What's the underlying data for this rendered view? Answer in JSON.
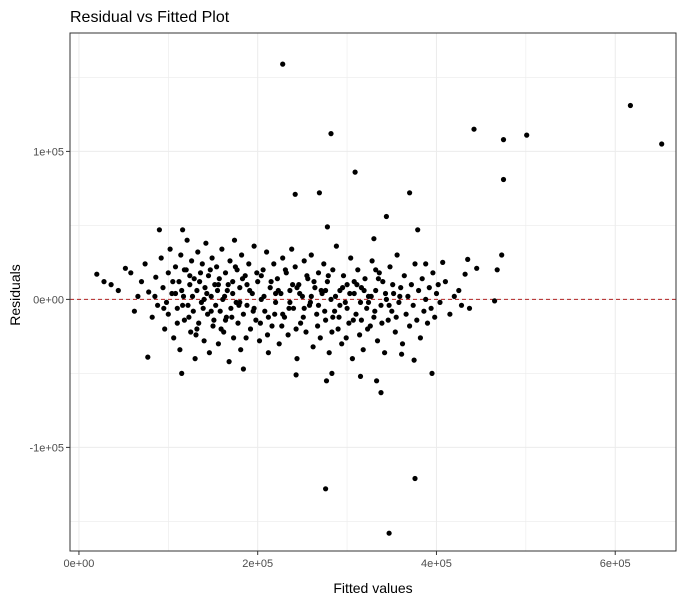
{
  "chart_data": {
    "type": "scatter",
    "title": "Residual vs Fitted Plot",
    "xlabel": "Fitted values",
    "ylabel": "Residuals",
    "xlim": [
      -10000,
      668000
    ],
    "ylim": [
      -170000,
      180000
    ],
    "x_ticks": [
      {
        "value": 0,
        "label": "0e+00"
      },
      {
        "value": 200000,
        "label": "2e+05"
      },
      {
        "value": 400000,
        "label": "4e+05"
      },
      {
        "value": 600000,
        "label": "6e+05"
      }
    ],
    "y_ticks": [
      {
        "value": -100000,
        "label": "-1e+05"
      },
      {
        "value": 0,
        "label": "0e+00"
      },
      {
        "value": 100000,
        "label": "1e+05"
      }
    ],
    "grid": true,
    "reference_line": {
      "y": 0,
      "style": "dashed",
      "color": "#b22222"
    },
    "point_color": "#000000",
    "points": [
      [
        228000,
        159000
      ],
      [
        617000,
        131000
      ],
      [
        652000,
        105000
      ],
      [
        442000,
        115000
      ],
      [
        501000,
        111000
      ],
      [
        475000,
        108000
      ],
      [
        282000,
        112000
      ],
      [
        475000,
        81000
      ],
      [
        309000,
        86000
      ],
      [
        269000,
        72000
      ],
      [
        242000,
        71000
      ],
      [
        370000,
        72000
      ],
      [
        344000,
        56000
      ],
      [
        278000,
        49000
      ],
      [
        379000,
        47000
      ],
      [
        90000,
        47000
      ],
      [
        116000,
        47000
      ],
      [
        330000,
        41000
      ],
      [
        473000,
        30000
      ],
      [
        435000,
        27000
      ],
      [
        407000,
        25000
      ],
      [
        388000,
        24000
      ],
      [
        20000,
        17000
      ],
      [
        36000,
        10000
      ],
      [
        52000,
        21000
      ],
      [
        445000,
        21000
      ],
      [
        468000,
        20000
      ],
      [
        432000,
        17000
      ],
      [
        402000,
        10000
      ],
      [
        465000,
        -1000
      ],
      [
        437000,
        -6000
      ],
      [
        395000,
        -50000
      ],
      [
        333000,
        -55000
      ],
      [
        361000,
        -37000
      ],
      [
        375000,
        -41000
      ],
      [
        283000,
        -50000
      ],
      [
        315000,
        -52000
      ],
      [
        277000,
        -55000
      ],
      [
        243000,
        -51000
      ],
      [
        338000,
        -63000
      ],
      [
        115000,
        -50000
      ],
      [
        184000,
        -47000
      ],
      [
        77000,
        -39000
      ],
      [
        276000,
        -128000
      ],
      [
        376000,
        -121000
      ],
      [
        347000,
        -158000
      ],
      [
        28000,
        12000
      ],
      [
        44000,
        6000
      ],
      [
        58000,
        18000
      ],
      [
        62000,
        -8000
      ],
      [
        66000,
        2000
      ],
      [
        70000,
        12000
      ],
      [
        74000,
        24000
      ],
      [
        78000,
        5000
      ],
      [
        82000,
        -12000
      ],
      [
        86000,
        15000
      ],
      [
        88000,
        -4000
      ],
      [
        92000,
        28000
      ],
      [
        94000,
        8000
      ],
      [
        96000,
        -20000
      ],
      [
        98000,
        -2000
      ],
      [
        100000,
        18000
      ],
      [
        102000,
        34000
      ],
      [
        104000,
        4000
      ],
      [
        106000,
        -26000
      ],
      [
        108000,
        22000
      ],
      [
        110000,
        -6000
      ],
      [
        112000,
        12000
      ],
      [
        113000,
        -34000
      ],
      [
        114000,
        30000
      ],
      [
        117000,
        2000
      ],
      [
        118000,
        -14000
      ],
      [
        120000,
        20000
      ],
      [
        121000,
        40000
      ],
      [
        122000,
        -4000
      ],
      [
        124000,
        10000
      ],
      [
        125000,
        -22000
      ],
      [
        126000,
        26000
      ],
      [
        128000,
        -8000
      ],
      [
        129000,
        14000
      ],
      [
        130000,
        -40000
      ],
      [
        132000,
        6000
      ],
      [
        133000,
        32000
      ],
      [
        134000,
        -16000
      ],
      [
        136000,
        18000
      ],
      [
        137000,
        -2000
      ],
      [
        138000,
        24000
      ],
      [
        140000,
        -28000
      ],
      [
        141000,
        8000
      ],
      [
        142000,
        38000
      ],
      [
        144000,
        -10000
      ],
      [
        145000,
        16000
      ],
      [
        146000,
        -36000
      ],
      [
        148000,
        2000
      ],
      [
        149000,
        28000
      ],
      [
        150000,
        -18000
      ],
      [
        152000,
        10000
      ],
      [
        153000,
        -4000
      ],
      [
        154000,
        22000
      ],
      [
        156000,
        -30000
      ],
      [
        157000,
        14000
      ],
      [
        158000,
        -8000
      ],
      [
        160000,
        34000
      ],
      [
        161000,
        0
      ],
      [
        162000,
        -22000
      ],
      [
        164000,
        18000
      ],
      [
        165000,
        -12000
      ],
      [
        166000,
        6000
      ],
      [
        168000,
        -42000
      ],
      [
        169000,
        26000
      ],
      [
        170000,
        -6000
      ],
      [
        172000,
        12000
      ],
      [
        173000,
        -26000
      ],
      [
        174000,
        40000
      ],
      [
        176000,
        -2000
      ],
      [
        177000,
        20000
      ],
      [
        178000,
        -16000
      ],
      [
        180000,
        8000
      ],
      [
        181000,
        -34000
      ],
      [
        182000,
        30000
      ],
      [
        184000,
        -10000
      ],
      [
        186000,
        16000
      ],
      [
        188000,
        -4000
      ],
      [
        190000,
        24000
      ],
      [
        192000,
        -20000
      ],
      [
        194000,
        4000
      ],
      [
        196000,
        36000
      ],
      [
        198000,
        -14000
      ],
      [
        200000,
        12000
      ],
      [
        202000,
        -28000
      ],
      [
        204000,
        0
      ],
      [
        206000,
        20000
      ],
      [
        208000,
        -8000
      ],
      [
        210000,
        32000
      ],
      [
        212000,
        -36000
      ],
      [
        214000,
        8000
      ],
      [
        216000,
        -18000
      ],
      [
        218000,
        24000
      ],
      [
        220000,
        -2000
      ],
      [
        222000,
        14000
      ],
      [
        224000,
        -30000
      ],
      [
        226000,
        4000
      ],
      [
        228000,
        28000
      ],
      [
        230000,
        -12000
      ],
      [
        232000,
        18000
      ],
      [
        234000,
        -24000
      ],
      [
        236000,
        6000
      ],
      [
        238000,
        34000
      ],
      [
        240000,
        -6000
      ],
      [
        242000,
        22000
      ],
      [
        244000,
        -40000
      ],
      [
        246000,
        10000
      ],
      [
        248000,
        -16000
      ],
      [
        250000,
        2000
      ],
      [
        252000,
        26000
      ],
      [
        254000,
        -22000
      ],
      [
        256000,
        14000
      ],
      [
        258000,
        -4000
      ],
      [
        260000,
        30000
      ],
      [
        262000,
        -32000
      ],
      [
        264000,
        8000
      ],
      [
        266000,
        -10000
      ],
      [
        268000,
        18000
      ],
      [
        270000,
        -26000
      ],
      [
        272000,
        4000
      ],
      [
        274000,
        24000
      ],
      [
        276000,
        -14000
      ],
      [
        278000,
        12000
      ],
      [
        280000,
        -36000
      ],
      [
        282000,
        0
      ],
      [
        284000,
        20000
      ],
      [
        286000,
        -8000
      ],
      [
        288000,
        36000
      ],
      [
        290000,
        -20000
      ],
      [
        292000,
        6000
      ],
      [
        294000,
        -30000
      ],
      [
        296000,
        16000
      ],
      [
        298000,
        -2000
      ],
      [
        300000,
        10000
      ],
      [
        302000,
        -16000
      ],
      [
        304000,
        28000
      ],
      [
        306000,
        -40000
      ],
      [
        308000,
        4000
      ],
      [
        310000,
        -10000
      ],
      [
        312000,
        20000
      ],
      [
        314000,
        -24000
      ],
      [
        316000,
        8000
      ],
      [
        318000,
        -34000
      ],
      [
        320000,
        14000
      ],
      [
        322000,
        -6000
      ],
      [
        324000,
        2000
      ],
      [
        326000,
        -18000
      ],
      [
        328000,
        26000
      ],
      [
        330000,
        -12000
      ],
      [
        332000,
        6000
      ],
      [
        334000,
        -28000
      ],
      [
        336000,
        18000
      ],
      [
        338000,
        -4000
      ],
      [
        340000,
        12000
      ],
      [
        342000,
        -36000
      ],
      [
        344000,
        0
      ],
      [
        346000,
        -14000
      ],
      [
        348000,
        22000
      ],
      [
        350000,
        -8000
      ],
      [
        352000,
        4000
      ],
      [
        354000,
        -22000
      ],
      [
        356000,
        30000
      ],
      [
        358000,
        -2000
      ],
      [
        360000,
        8000
      ],
      [
        362000,
        -30000
      ],
      [
        364000,
        16000
      ],
      [
        366000,
        -10000
      ],
      [
        368000,
        2000
      ],
      [
        370000,
        -18000
      ],
      [
        372000,
        10000
      ],
      [
        374000,
        -4000
      ],
      [
        376000,
        24000
      ],
      [
        378000,
        -14000
      ],
      [
        380000,
        6000
      ],
      [
        382000,
        -26000
      ],
      [
        384000,
        14000
      ],
      [
        386000,
        -8000
      ],
      [
        388000,
        0
      ],
      [
        390000,
        -16000
      ],
      [
        392000,
        8000
      ],
      [
        394000,
        -6000
      ],
      [
        396000,
        18000
      ],
      [
        398000,
        -12000
      ],
      [
        400000,
        4000
      ],
      [
        404000,
        -2000
      ],
      [
        410000,
        12000
      ],
      [
        415000,
        -10000
      ],
      [
        420000,
        2000
      ],
      [
        425000,
        6000
      ],
      [
        428000,
        -4000
      ],
      [
        85000,
        2000
      ],
      [
        95000,
        -6000
      ],
      [
        105000,
        12000
      ],
      [
        110000,
        -16000
      ],
      [
        115000,
        6000
      ],
      [
        118000,
        20000
      ],
      [
        123000,
        -12000
      ],
      [
        127000,
        2000
      ],
      [
        131000,
        -24000
      ],
      [
        135000,
        12000
      ],
      [
        139000,
        -6000
      ],
      [
        143000,
        4000
      ],
      [
        147000,
        20000
      ],
      [
        151000,
        -14000
      ],
      [
        155000,
        6000
      ],
      [
        159000,
        -20000
      ],
      [
        163000,
        2000
      ],
      [
        167000,
        10000
      ],
      [
        171000,
        -12000
      ],
      [
        175000,
        22000
      ],
      [
        179000,
        -4000
      ],
      [
        183000,
        14000
      ],
      [
        187000,
        -26000
      ],
      [
        191000,
        6000
      ],
      [
        195000,
        -8000
      ],
      [
        199000,
        18000
      ],
      [
        203000,
        -16000
      ],
      [
        207000,
        2000
      ],
      [
        211000,
        -24000
      ],
      [
        215000,
        12000
      ],
      [
        219000,
        -10000
      ],
      [
        223000,
        6000
      ],
      [
        227000,
        -18000
      ],
      [
        231000,
        20000
      ],
      [
        235000,
        -6000
      ],
      [
        239000,
        10000
      ],
      [
        243000,
        -20000
      ],
      [
        247000,
        4000
      ],
      [
        251000,
        -12000
      ],
      [
        255000,
        16000
      ],
      [
        259000,
        -2000
      ],
      [
        263000,
        12000
      ],
      [
        267000,
        -18000
      ],
      [
        271000,
        6000
      ],
      [
        275000,
        -8000
      ],
      [
        279000,
        16000
      ],
      [
        283000,
        -22000
      ],
      [
        287000,
        2000
      ],
      [
        291000,
        -12000
      ],
      [
        295000,
        8000
      ],
      [
        299000,
        -26000
      ],
      [
        303000,
        4000
      ],
      [
        307000,
        -14000
      ],
      [
        311000,
        10000
      ],
      [
        315000,
        -2000
      ],
      [
        319000,
        6000
      ],
      [
        323000,
        -20000
      ],
      [
        327000,
        2000
      ],
      [
        331000,
        -8000
      ],
      [
        335000,
        14000
      ],
      [
        339000,
        -16000
      ],
      [
        343000,
        4000
      ],
      [
        347000,
        -4000
      ],
      [
        351000,
        10000
      ],
      [
        355000,
        -12000
      ],
      [
        359000,
        2000
      ],
      [
        100000,
        -10000
      ],
      [
        108000,
        4000
      ],
      [
        116000,
        -4000
      ],
      [
        124000,
        16000
      ],
      [
        132000,
        -20000
      ],
      [
        140000,
        0
      ],
      [
        148000,
        -8000
      ],
      [
        156000,
        10000
      ],
      [
        164000,
        -14000
      ],
      [
        172000,
        4000
      ],
      [
        180000,
        -2000
      ],
      [
        188000,
        10000
      ],
      [
        196000,
        -6000
      ],
      [
        204000,
        16000
      ],
      [
        212000,
        -12000
      ],
      [
        220000,
        4000
      ],
      [
        228000,
        -10000
      ],
      [
        236000,
        -2000
      ],
      [
        244000,
        8000
      ],
      [
        252000,
        -6000
      ],
      [
        260000,
        2000
      ],
      [
        268000,
        -4000
      ],
      [
        276000,
        6000
      ],
      [
        284000,
        -12000
      ],
      [
        292000,
        -4000
      ],
      [
        300000,
        -6000
      ],
      [
        308000,
        12000
      ],
      [
        316000,
        -14000
      ],
      [
        324000,
        -2000
      ],
      [
        332000,
        20000
      ]
    ]
  }
}
